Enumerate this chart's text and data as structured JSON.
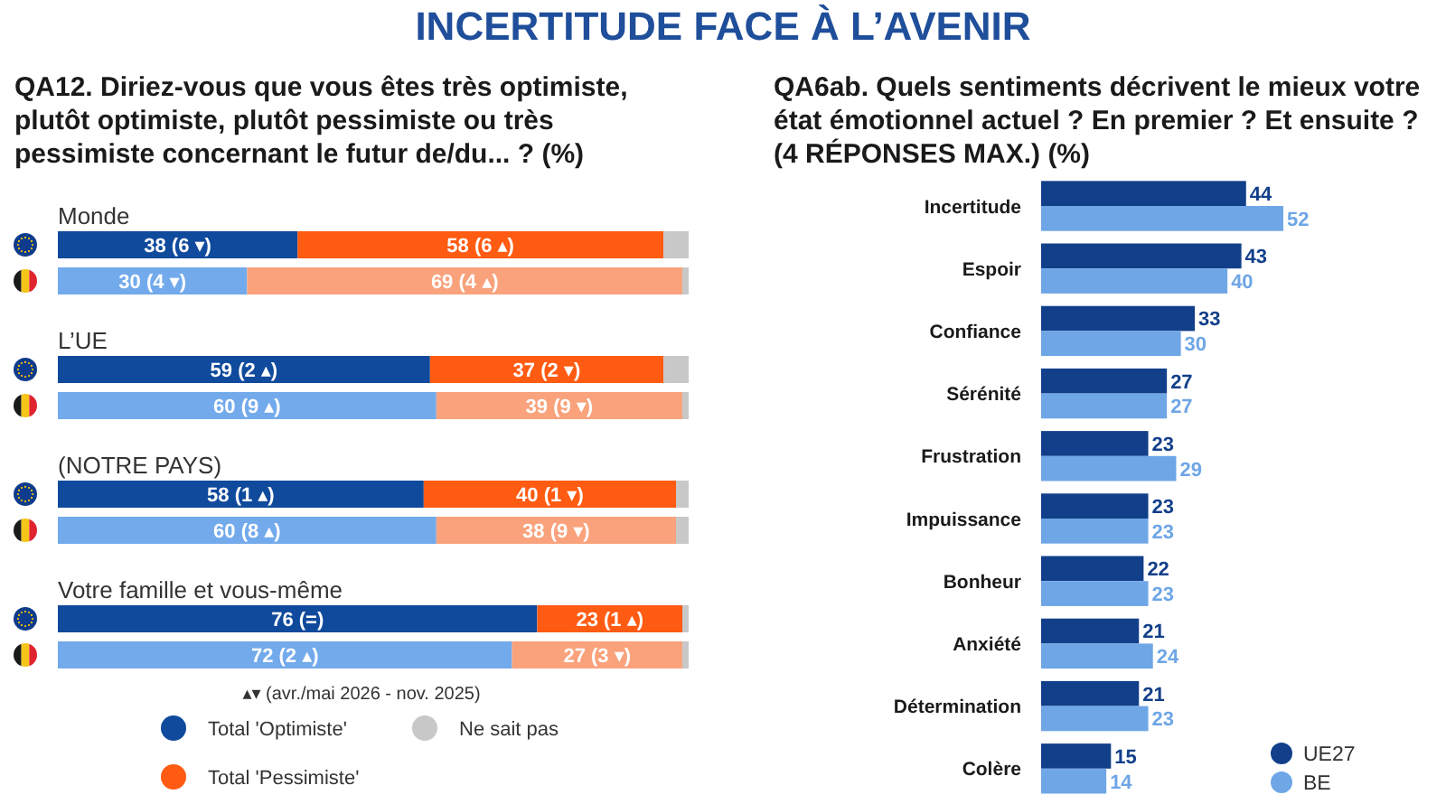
{
  "chart_data": [
    {
      "type": "other",
      "title": "INCERTITUDE FACE À L’AVENIR"
    },
    {
      "type": "bar",
      "orientation": "horizontal",
      "stacked": true,
      "title": "QA12. Diriez-vous que vous êtes très optimiste, plutôt optimiste, plutôt pessimiste ou très pessimiste concernant le futur de/du... ? (%)",
      "categories": [
        "Monde",
        null,
        "L’UE",
        null,
        "(NOTRE PAYS)",
        null,
        "Votre famille et vous-même",
        null
      ],
      "series": [
        {
          "name": "Total 'Optimiste'",
          "color": "#104a9c",
          "colors": [
            "#104a9c",
            "#72aaec",
            "#104a9c",
            "#72aaec",
            "#104a9c",
            "#72aaec",
            "#104a9c",
            "#72aaec"
          ],
          "values": [
            38,
            30,
            59,
            60,
            58,
            60,
            76,
            72
          ],
          "value_labels": [
            "38 (6 ▾)",
            "30 (4 ▾)",
            "59 (2 ▴)",
            "60 (9 ▴)",
            "58 (1 ▴)",
            "60 (8 ▴)",
            "76 (=)",
            "72 (2 ▴)"
          ]
        },
        {
          "name": "Total 'Pessimiste'",
          "color": "#ff5b12",
          "colors": [
            "#ff5b12",
            "#f9a27c",
            "#ff5b12",
            "#f9a27c",
            "#ff5b12",
            "#f9a27c",
            "#ff5b12",
            "#f9a27c"
          ],
          "values": [
            58,
            69,
            37,
            39,
            40,
            38,
            23,
            27
          ],
          "value_labels": [
            "58 (6 ▴)",
            "69 (4 ▴)",
            "37 (2 ▾)",
            "39 (9 ▾)",
            "40 (1 ▾)",
            "38 (9 ▾)",
            "23 (1 ▴)",
            "27 (3 ▾)"
          ]
        },
        {
          "name": "Ne sait pas",
          "color": "#c8c8c8",
          "values": [
            4,
            1,
            4,
            1,
            2,
            2,
            1,
            1
          ]
        }
      ],
      "xlim": [
        0,
        100
      ],
      "tick_labels": "y",
      "legend": "bottom",
      "annotations": [
        "▴▾ (avr./mai 2026 - nov. 2025)"
      ]
    },
    {
      "type": "bar",
      "orientation": "horizontal",
      "title": "QA6ab. Quels sentiments décrivent le mieux votre état émotionnel actuel ? En premier ? Et ensuite ? (4 RÉPONSES MAX.) (%)",
      "categories": [
        "Incertitude",
        "Espoir",
        "Confiance",
        "Sérénité",
        "Frustration",
        "Impuissance",
        "Bonheur",
        "Anxiété",
        "Détermination",
        "Colère"
      ],
      "series": [
        {
          "name": "UE27",
          "color": "#123f8a",
          "values": [
            44,
            43,
            33,
            27,
            23,
            23,
            22,
            21,
            21,
            15
          ]
        },
        {
          "name": "BE",
          "color": "#6ea6e6",
          "values": [
            52,
            40,
            30,
            27,
            29,
            23,
            23,
            24,
            23,
            14
          ]
        }
      ],
      "tick_labels": "y",
      "data_labels": true,
      "legend": "bottom right"
    }
  ]
}
